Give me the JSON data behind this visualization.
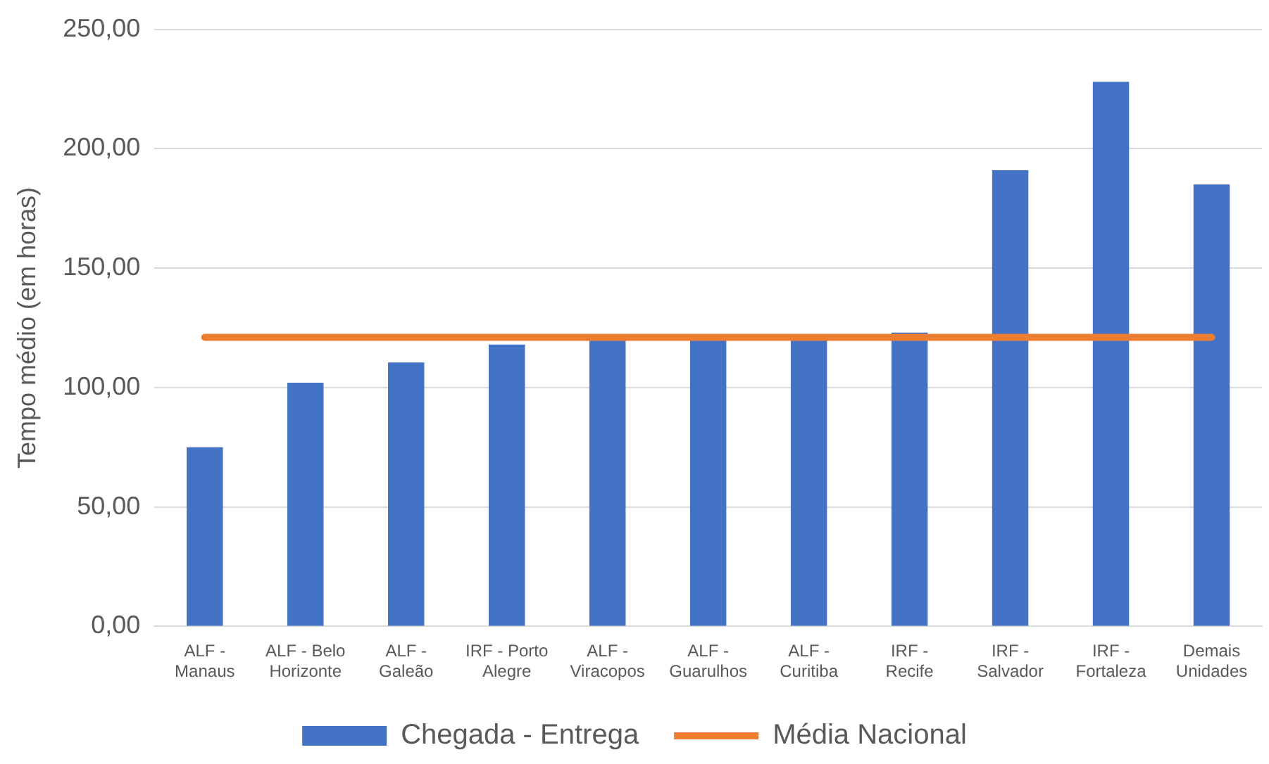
{
  "chart_data": {
    "type": "bar",
    "ylabel": "Tempo médio (em horas)",
    "categories": [
      "ALF - Manaus",
      "ALF - Belo Horizonte",
      "ALF - Galeão",
      "IRF - Porto Alegre",
      "ALF - Viracopos",
      "ALF - Guarulhos",
      "ALF - Curitiba",
      "IRF - Recife",
      "IRF - Salvador",
      "IRF - Fortaleza",
      "Demais Unidades"
    ],
    "series": [
      {
        "name": "Chegada - Entrega",
        "color": "#4472c4",
        "values": [
          75,
          102,
          110.5,
          118,
          120,
          120,
          120,
          123,
          191,
          228,
          185
        ]
      },
      {
        "name": "Média Nacional",
        "color": "#ed7d31",
        "type": "line",
        "values": [
          121,
          121,
          121,
          121,
          121,
          121,
          121,
          121,
          121,
          121,
          121
        ]
      }
    ],
    "ylim": [
      0,
      250
    ],
    "yticks": [
      {
        "value": 0,
        "label": "0,00"
      },
      {
        "value": 50,
        "label": "50,00"
      },
      {
        "value": 100,
        "label": "100,00"
      },
      {
        "value": 150,
        "label": "150,00"
      },
      {
        "value": 200,
        "label": "200,00"
      },
      {
        "value": 250,
        "label": "250,00"
      }
    ],
    "grid": "y",
    "legend": "bottom",
    "marker": "none",
    "line_style": "solid"
  }
}
